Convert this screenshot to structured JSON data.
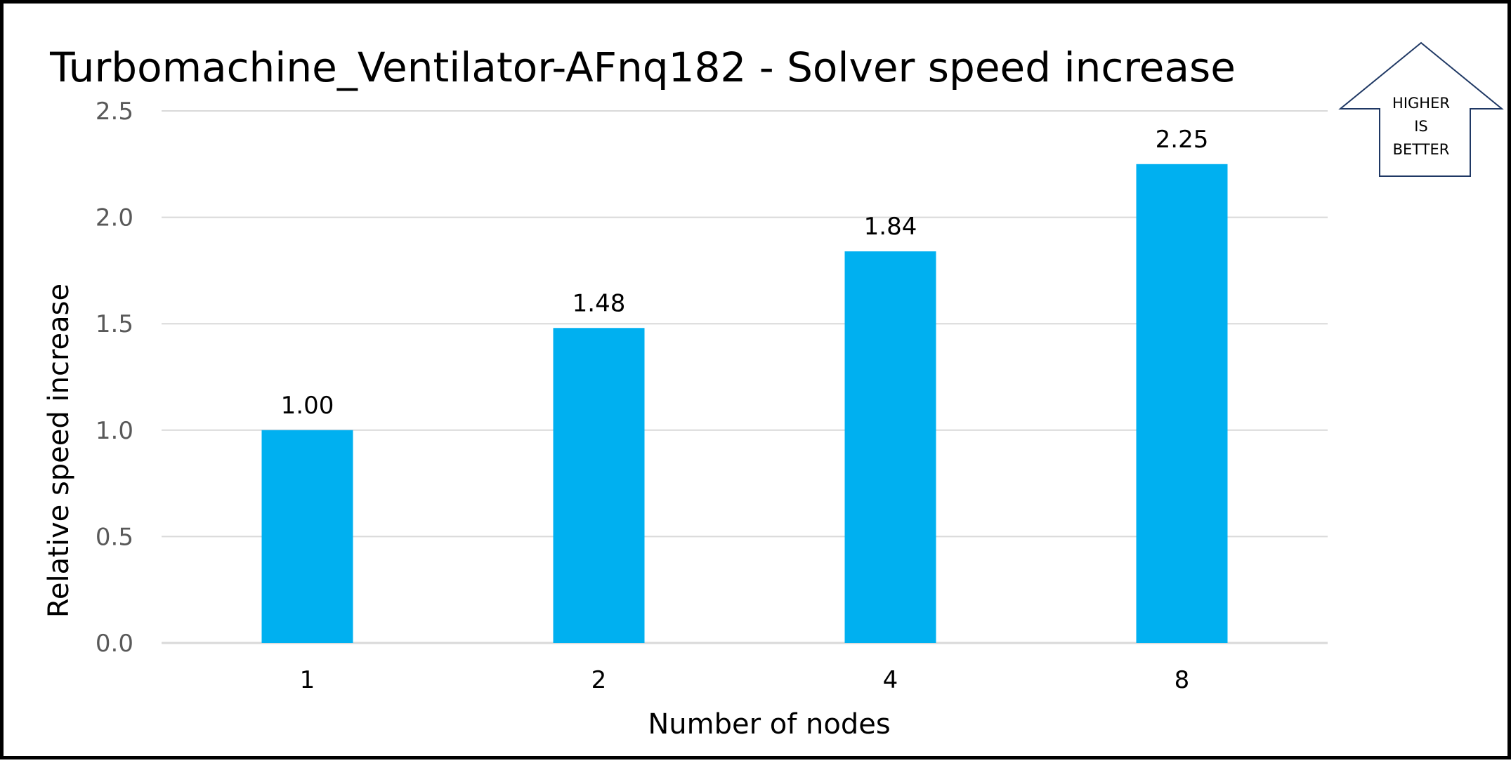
{
  "chart_data": {
    "type": "bar",
    "title": "Turbomachine_Ventilator-AFnq182 - Solver speed increase",
    "xlabel": "Number of nodes",
    "ylabel": "Relative speed increase",
    "categories": [
      "1",
      "2",
      "4",
      "8"
    ],
    "values": [
      1.0,
      1.48,
      1.84,
      2.25
    ],
    "data_labels": [
      "1.00",
      "1.48",
      "1.84",
      "2.25"
    ],
    "ylim": [
      0,
      2.5
    ],
    "yticks": [
      "0.0",
      "0.5",
      "1.0",
      "1.5",
      "2.0",
      "2.5"
    ],
    "grid": true,
    "legend": "none",
    "bar_color": "#00B0F0",
    "grid_color": "#D9D9D9"
  },
  "badge": {
    "lines": [
      "HIGHER",
      "IS",
      "BETTER"
    ],
    "icon": "up-arrow-icon",
    "border_color": "#1F3864"
  }
}
